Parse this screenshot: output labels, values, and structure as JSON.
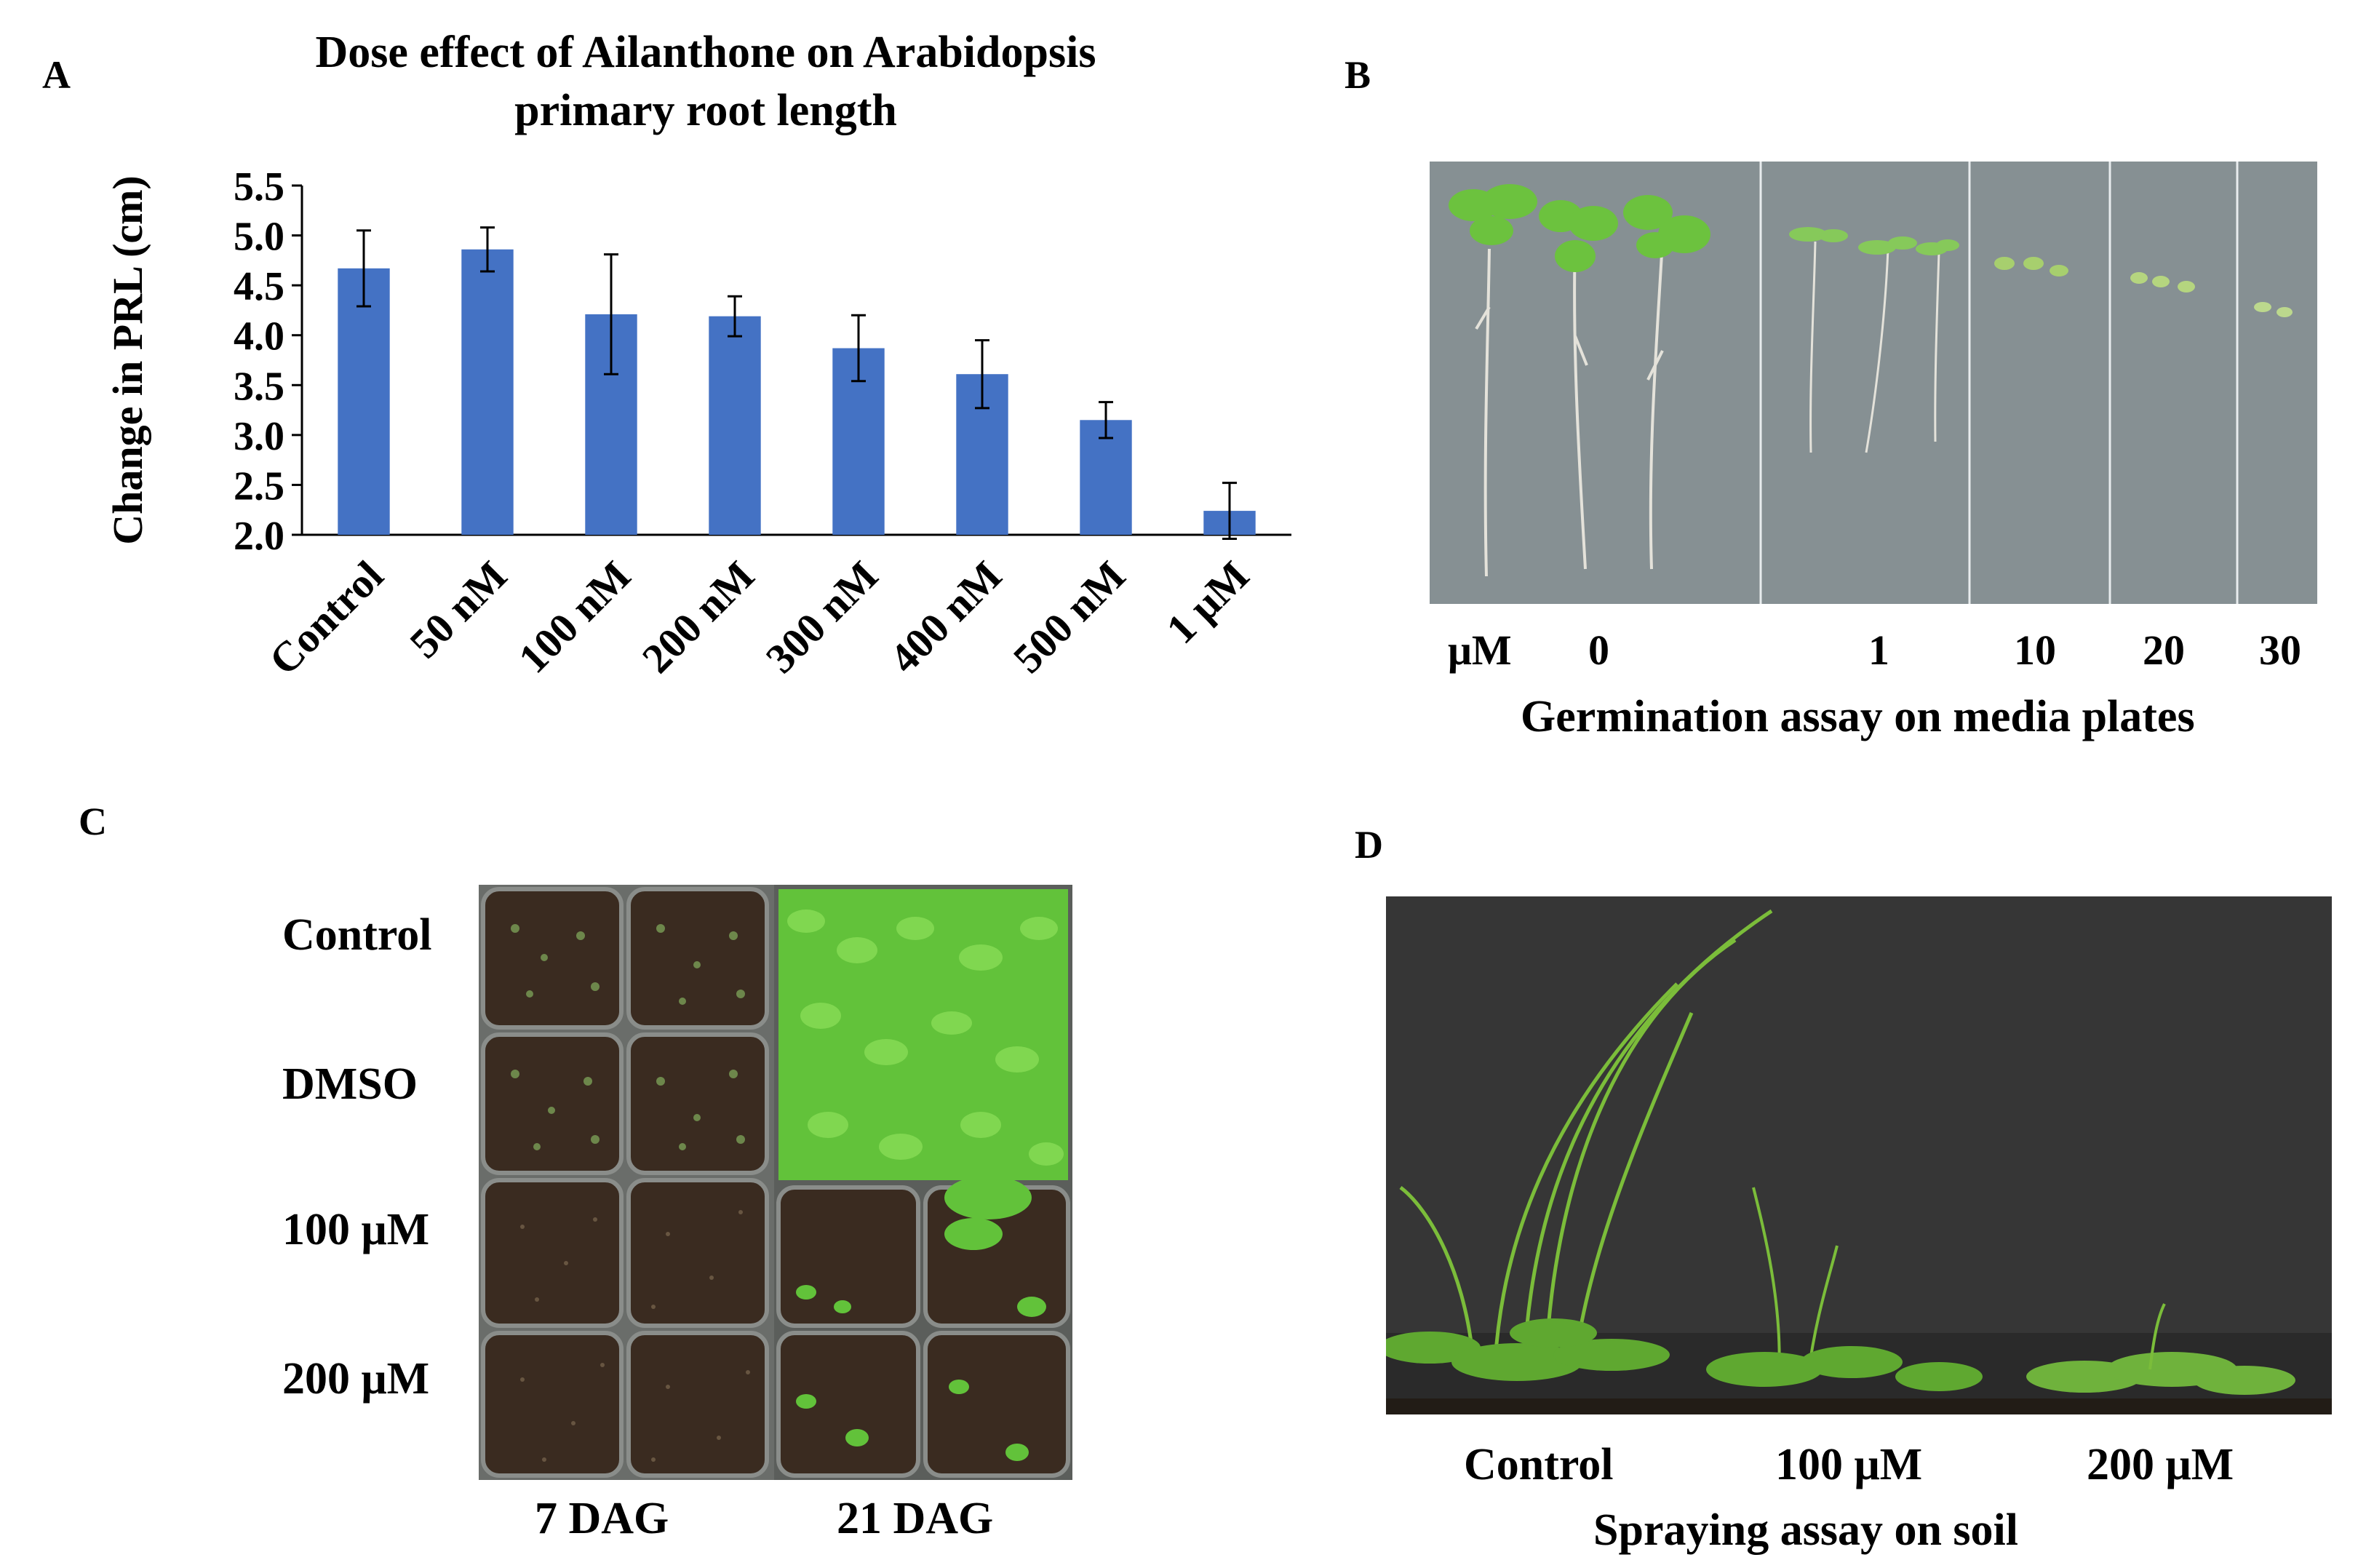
{
  "panels": {
    "a": {
      "letter": "A"
    },
    "b": {
      "letter": "B",
      "unit_label": "μM",
      "concentrations": [
        "0",
        "1",
        "10",
        "20",
        "30"
      ],
      "caption": "Germination assay on media plates"
    },
    "c": {
      "letter": "C",
      "row_labels": [
        "Control",
        "DMSO",
        "100 μM",
        "200 μM"
      ],
      "column_labels": [
        "7 DAG",
        "21 DAG"
      ]
    },
    "d": {
      "letter": "D",
      "group_labels": [
        "Control",
        "100 μM",
        "200 μM"
      ],
      "caption": "Spraying assay on soil"
    }
  },
  "colors": {
    "bar": "#4472c4",
    "plate": "#8e979a",
    "seedling": "#76c043",
    "soil": "#2f241c",
    "backdrop": "#333333"
  },
  "chart_data": {
    "type": "bar",
    "title": "Dose effect of Ailanthone on Arabidopsis primary root length",
    "title_lines": [
      "Dose effect of Ailanthone on Arabidopsis",
      "primary root length"
    ],
    "xlabel": "",
    "ylabel": "Change in PRL (cm)",
    "categories": [
      "Control",
      "50 nM",
      "100 nM",
      "200 nM",
      "300 nM",
      "400 nM",
      "500 nM",
      "1 μM"
    ],
    "values": [
      4.67,
      4.86,
      4.21,
      4.19,
      3.87,
      3.61,
      3.15,
      2.24
    ],
    "error": [
      0.38,
      0.22,
      0.6,
      0.2,
      0.33,
      0.34,
      0.18,
      0.28
    ],
    "yticks": [
      "2.0",
      "2.5",
      "3.0",
      "3.5",
      "4.0",
      "4.5",
      "5.0",
      "5.5"
    ],
    "ylim": [
      2.0,
      5.5
    ],
    "grid": false,
    "legend": "none"
  }
}
